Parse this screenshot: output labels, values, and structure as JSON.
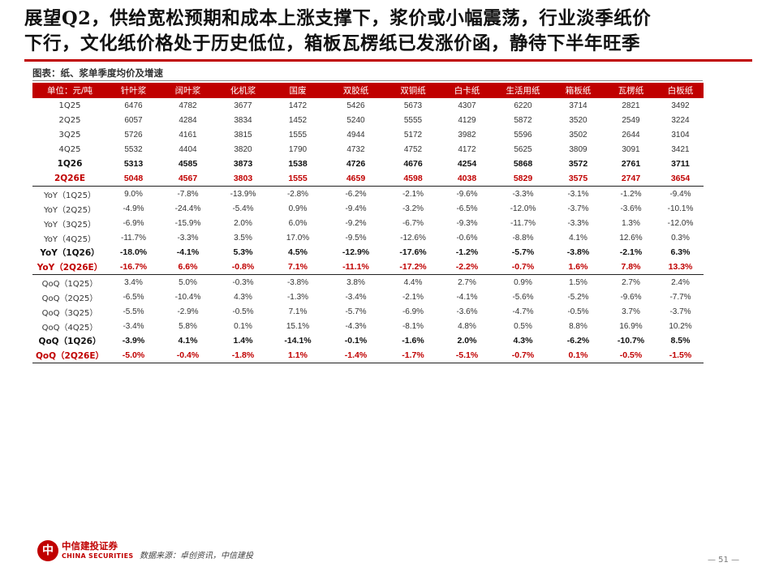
{
  "title_line1": "展望Q2，供给宽松预期和成本上涨支撑下，浆价或小幅震荡，行业淡季纸价",
  "title_line2": "下行，文化纸价格处于历史低位，箱板瓦楞纸已发涨价函，静待下半年旺季",
  "figure_caption": "图表：纸、浆单季度均价及增速",
  "table": {
    "headers": [
      "单位：元/吨",
      "针叶浆",
      "阔叶浆",
      "化机浆",
      "国废",
      "双胶纸",
      "双铜纸",
      "白卡纸",
      "生活用纸",
      "箱板纸",
      "瓦楞纸",
      "白板纸"
    ],
    "rows": [
      {
        "label": "1Q25",
        "values": [
          "6476",
          "4782",
          "3677",
          "1472",
          "5426",
          "5673",
          "4307",
          "6220",
          "3714",
          "2821",
          "3492"
        ],
        "style": "normal"
      },
      {
        "label": "2Q25",
        "values": [
          "6057",
          "4284",
          "3834",
          "1452",
          "5240",
          "5555",
          "4129",
          "5872",
          "3520",
          "2549",
          "3224"
        ],
        "style": "normal"
      },
      {
        "label": "3Q25",
        "values": [
          "5726",
          "4161",
          "3815",
          "1555",
          "4944",
          "5172",
          "3982",
          "5596",
          "3502",
          "2644",
          "3104"
        ],
        "style": "normal"
      },
      {
        "label": "4Q25",
        "values": [
          "5532",
          "4404",
          "3820",
          "1790",
          "4732",
          "4752",
          "4172",
          "5625",
          "3809",
          "3091",
          "3421"
        ],
        "style": "normal"
      },
      {
        "label": "1Q26",
        "values": [
          "5313",
          "4585",
          "3873",
          "1538",
          "4726",
          "4676",
          "4254",
          "5868",
          "3572",
          "2761",
          "3711"
        ],
        "style": "bold"
      },
      {
        "label": "2Q26E",
        "values": [
          "5048",
          "4567",
          "3803",
          "1555",
          "4659",
          "4598",
          "4038",
          "5829",
          "3575",
          "2747",
          "3654"
        ],
        "style": "est"
      },
      {
        "label": "YoY（1Q25）",
        "values": [
          "9.0%",
          "-7.8%",
          "-13.9%",
          "-2.8%",
          "-6.2%",
          "-2.1%",
          "-9.6%",
          "-3.3%",
          "-3.1%",
          "-1.2%",
          "-9.4%"
        ],
        "style": "sep"
      },
      {
        "label": "YoY（2Q25）",
        "values": [
          "-4.9%",
          "-24.4%",
          "-5.4%",
          "0.9%",
          "-9.4%",
          "-3.2%",
          "-6.5%",
          "-12.0%",
          "-3.7%",
          "-3.6%",
          "-10.1%"
        ],
        "style": "normal"
      },
      {
        "label": "YoY（3Q25）",
        "values": [
          "-6.9%",
          "-15.9%",
          "2.0%",
          "6.0%",
          "-9.2%",
          "-6.7%",
          "-9.3%",
          "-11.7%",
          "-3.3%",
          "1.3%",
          "-12.0%"
        ],
        "style": "normal"
      },
      {
        "label": "YoY（4Q25）",
        "values": [
          "-11.7%",
          "-3.3%",
          "3.5%",
          "17.0%",
          "-9.5%",
          "-12.6%",
          "-0.6%",
          "-8.8%",
          "4.1%",
          "12.6%",
          "0.3%"
        ],
        "style": "normal"
      },
      {
        "label": "YoY（1Q26）",
        "values": [
          "-18.0%",
          "-4.1%",
          "5.3%",
          "4.5%",
          "-12.9%",
          "-17.6%",
          "-1.2%",
          "-5.7%",
          "-3.8%",
          "-2.1%",
          "6.3%"
        ],
        "style": "bold"
      },
      {
        "label": "YoY（2Q26E）",
        "values": [
          "-16.7%",
          "6.6%",
          "-0.8%",
          "7.1%",
          "-11.1%",
          "-17.2%",
          "-2.2%",
          "-0.7%",
          "1.6%",
          "7.8%",
          "13.3%"
        ],
        "style": "est"
      },
      {
        "label": "QoQ（1Q25）",
        "values": [
          "3.4%",
          "5.0%",
          "-0.3%",
          "-3.8%",
          "3.8%",
          "4.4%",
          "2.7%",
          "0.9%",
          "1.5%",
          "2.7%",
          "2.4%"
        ],
        "style": "sep"
      },
      {
        "label": "QoQ（2Q25）",
        "values": [
          "-6.5%",
          "-10.4%",
          "4.3%",
          "-1.3%",
          "-3.4%",
          "-2.1%",
          "-4.1%",
          "-5.6%",
          "-5.2%",
          "-9.6%",
          "-7.7%"
        ],
        "style": "normal"
      },
      {
        "label": "QoQ（3Q25）",
        "values": [
          "-5.5%",
          "-2.9%",
          "-0.5%",
          "7.1%",
          "-5.7%",
          "-6.9%",
          "-3.6%",
          "-4.7%",
          "-0.5%",
          "3.7%",
          "-3.7%"
        ],
        "style": "normal"
      },
      {
        "label": "QoQ（4Q25）",
        "values": [
          "-3.4%",
          "5.8%",
          "0.1%",
          "15.1%",
          "-4.3%",
          "-8.1%",
          "4.8%",
          "0.5%",
          "8.8%",
          "16.9%",
          "10.2%"
        ],
        "style": "normal"
      },
      {
        "label": "QoQ（1Q26）",
        "values": [
          "-3.9%",
          "4.1%",
          "1.4%",
          "-14.1%",
          "-0.1%",
          "-1.6%",
          "2.0%",
          "4.3%",
          "-6.2%",
          "-10.7%",
          "8.5%"
        ],
        "style": "bold"
      },
      {
        "label": "QoQ（2Q26E）",
        "values": [
          "-5.0%",
          "-0.4%",
          "-1.8%",
          "1.1%",
          "-1.4%",
          "-1.7%",
          "-5.1%",
          "-0.7%",
          "0.1%",
          "-0.5%",
          "-1.5%"
        ],
        "style": "est-last"
      }
    ]
  },
  "footer": {
    "brand_cn": "中信建投证券",
    "brand_en": "CHINA SECURITIES",
    "source": "数据来源：卓创资讯，中信建投",
    "page": "— 51 —"
  },
  "colors": {
    "accent": "#c00000"
  }
}
